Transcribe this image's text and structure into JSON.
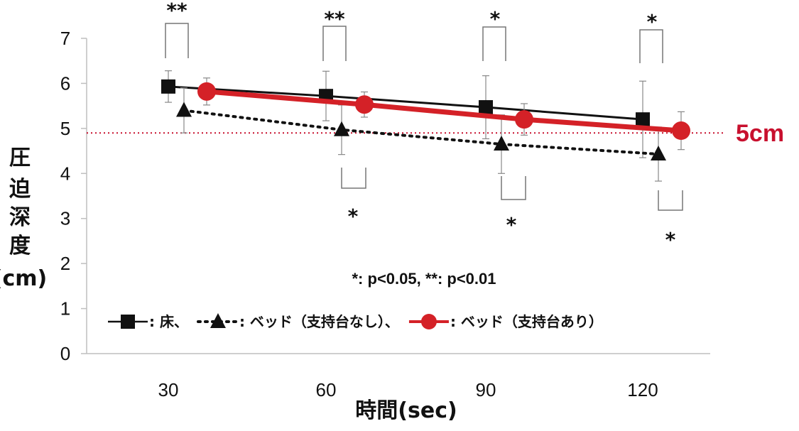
{
  "chart_data": {
    "type": "line",
    "title": "",
    "xlabel": "時間(sec)",
    "ylabel": "圧迫深度(cm)",
    "ylabel_chars": [
      "圧",
      "迫",
      "深",
      "度",
      "(cm)"
    ],
    "ylim": [
      0,
      7
    ],
    "yticks": [
      "0",
      "1",
      "2",
      "3",
      "4",
      "5",
      "6",
      "7"
    ],
    "categories": [
      "30",
      "60",
      "90",
      "120"
    ],
    "grid": false,
    "series": [
      {
        "key": "floor",
        "legend_label": "床",
        "marker": "square",
        "line_style": "solid",
        "color": "#111111",
        "values": [
          5.93,
          5.72,
          5.47,
          5.2
        ],
        "errors": [
          0.35,
          0.55,
          0.7,
          0.85
        ]
      },
      {
        "key": "bed_no_support",
        "legend_label": "ベッド（支持台なし）",
        "marker": "triangle",
        "line_style": "dotted",
        "color": "#111111",
        "values": [
          5.4,
          4.97,
          4.65,
          4.43
        ],
        "errors": [
          0.5,
          0.55,
          0.65,
          0.6
        ]
      },
      {
        "key": "bed_with_support",
        "legend_label": "ベッド（支持台あり）",
        "marker": "circle",
        "line_style": "solid",
        "color": "#d42127",
        "values": [
          5.82,
          5.53,
          5.2,
          4.95
        ],
        "errors": [
          0.3,
          0.28,
          0.35,
          0.42
        ]
      }
    ],
    "reference_line": {
      "value": 4.9,
      "label": "5cm",
      "color": "#c8102e"
    },
    "significance_top": [
      "**",
      "**",
      "*",
      "*"
    ],
    "significance_bottom": [
      "",
      "*",
      "*",
      "*"
    ],
    "annotation": "*: p<0.05, **: p<0.01",
    "legend_separator": "、",
    "legend_colon": ":"
  }
}
